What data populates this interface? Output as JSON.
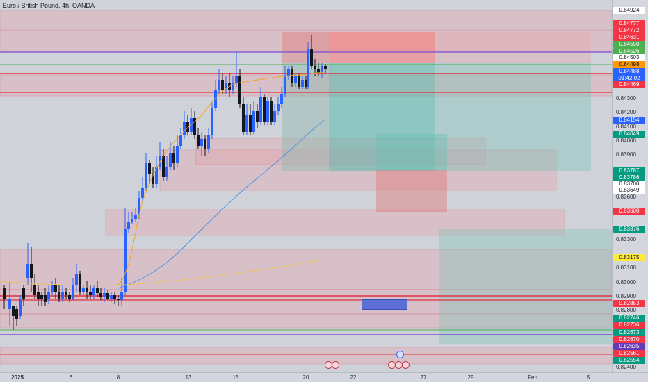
{
  "header": {
    "title": "Euro / British Pound, 4h, OANDA"
  },
  "price_axis": {
    "ticks": [
      "0.84300",
      "0.84200",
      "0.84100",
      "0.84000",
      "0.83900",
      "0.83700",
      "0.83600",
      "0.83300",
      "0.83100",
      "0.83000",
      "0.82900",
      "0.82800",
      "0.82400"
    ],
    "tags": [
      {
        "text": "0.84924",
        "bg": "#ffffff",
        "fg": "#131722"
      },
      {
        "text": "0.84777",
        "bg": "#f23645",
        "fg": "#ffffff"
      },
      {
        "text": "0.84772",
        "bg": "#f23645",
        "fg": "#ffffff"
      },
      {
        "text": "0.84631",
        "bg": "#f23645",
        "fg": "#ffffff"
      },
      {
        "text": "0.84550",
        "bg": "#4caf50",
        "fg": "#ffffff"
      },
      {
        "text": "0.84526",
        "bg": "#4caf50",
        "fg": "#ffffff"
      },
      {
        "text": "0.84503",
        "bg": "#ffffff",
        "fg": "#131722"
      },
      {
        "text": "0.84498",
        "bg": "#ff9800",
        "fg": "#131722"
      },
      {
        "text": "0.84469",
        "bg": "#f23645",
        "fg": "#ffffff"
      },
      {
        "text": "0.84154",
        "bg": "#2962ff",
        "fg": "#ffffff"
      },
      {
        "text": "0.84049",
        "bg": "#089981",
        "fg": "#ffffff"
      },
      {
        "text": "0.83787",
        "bg": "#089981",
        "fg": "#ffffff"
      },
      {
        "text": "0.83786",
        "bg": "#089981",
        "fg": "#ffffff"
      },
      {
        "text": "0.83700",
        "bg": "#ffffff",
        "fg": "#131722"
      },
      {
        "text": "0.83649",
        "bg": "#ffffff",
        "fg": "#131722"
      },
      {
        "text": "0.83500",
        "bg": "#f23645",
        "fg": "#ffffff"
      },
      {
        "text": "0.83376",
        "bg": "#089981",
        "fg": "#ffffff"
      },
      {
        "text": "0.83175",
        "bg": "#ffeb3b",
        "fg": "#131722"
      },
      {
        "text": "0.82853",
        "bg": "#f23645",
        "fg": "#ffffff"
      },
      {
        "text": "0.82746",
        "bg": "#089981",
        "fg": "#ffffff"
      },
      {
        "text": "0.82736",
        "bg": "#f23645",
        "fg": "#ffffff"
      },
      {
        "text": "0.82673",
        "bg": "#089981",
        "fg": "#ffffff"
      },
      {
        "text": "0.82670",
        "bg": "#f23645",
        "fg": "#ffffff"
      },
      {
        "text": "0.82635",
        "bg": "#673ab7",
        "fg": "#ffffff"
      },
      {
        "text": "0.82561",
        "bg": "#f23645",
        "fg": "#ffffff"
      },
      {
        "text": "0.82554",
        "bg": "#089981",
        "fg": "#ffffff"
      }
    ],
    "current": {
      "price": "0.84488",
      "countdown": "01:42:02"
    }
  },
  "time_axis": {
    "labels": [
      {
        "text": "2025",
        "bold": true
      },
      {
        "text": "6",
        "bold": false
      },
      {
        "text": "8",
        "bold": false
      },
      {
        "text": "13",
        "bold": false
      },
      {
        "text": "15",
        "bold": false
      },
      {
        "text": "20",
        "bold": false
      },
      {
        "text": "22",
        "bold": false
      },
      {
        "text": "27",
        "bold": false
      },
      {
        "text": "29",
        "bold": false
      },
      {
        "text": "Feb",
        "bold": false
      },
      {
        "text": "5",
        "bold": false
      }
    ]
  },
  "colors": {
    "up": "#2962ff",
    "down": "#131722",
    "ma_fast": "#f5a623",
    "ma_mid": "#4a90e2",
    "ma_slow": "#f0c060"
  }
}
